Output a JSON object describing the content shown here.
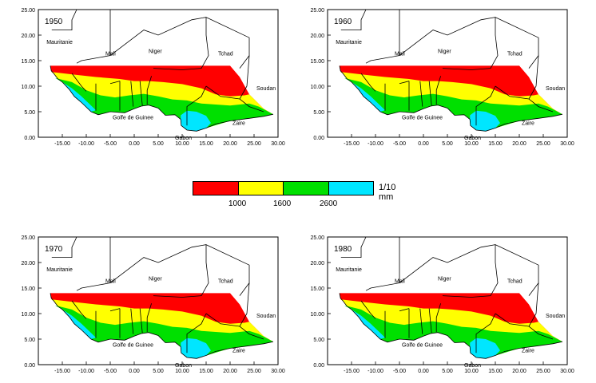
{
  "axes": {
    "y_ticks": [
      "25.00",
      "20.00",
      "15.00",
      "10.00",
      "5.00",
      "0.00"
    ],
    "x_ticks": [
      "-15.00",
      "-10.00",
      "-5.00",
      "0.00",
      "5.00",
      "10.00",
      "15.00",
      "20.00",
      "25.00",
      "30.00"
    ],
    "x_range": [
      -20,
      30
    ],
    "y_range": [
      0,
      25
    ]
  },
  "place_labels": {
    "mauritanie": "Mauritanie",
    "mali": "Mali",
    "niger": "Niger",
    "tchad": "Tchad",
    "soudan": "Soudan",
    "golfe": "Golfe de Guinee",
    "zaire": "Zaire",
    "gabon": "Gabon"
  },
  "panels": [
    {
      "year": "1950"
    },
    {
      "year": "1960"
    },
    {
      "year": "1970"
    },
    {
      "year": "1980"
    }
  ],
  "legend": {
    "unit": "1/10 mm",
    "colors": [
      "#ff0000",
      "#ffff00",
      "#00e000",
      "#00e6ff"
    ],
    "thresholds": [
      "1000",
      "1600",
      "2600"
    ]
  }
}
